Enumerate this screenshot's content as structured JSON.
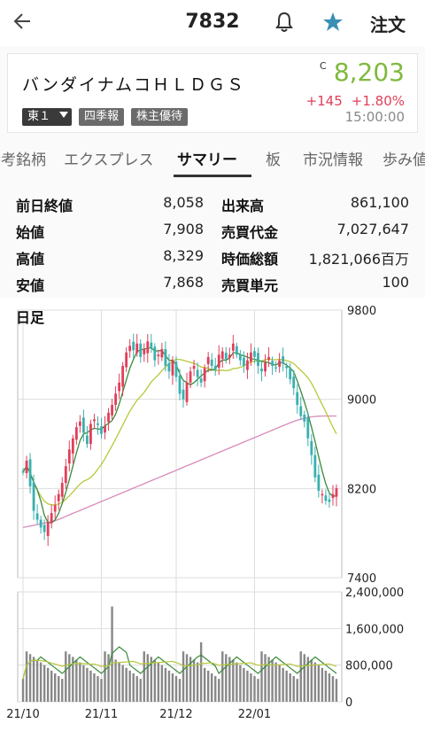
{
  "header": {
    "back_icon": "arrow-left-icon",
    "title": "7832",
    "bell_icon": "bell-icon",
    "star_icon": "star-icon",
    "order_label": "注文"
  },
  "stock": {
    "name": "バンダイナムコＨＬＤＧＳ",
    "c_mark": "C",
    "price": "8,203",
    "change": "+145",
    "change_pct": "+1.80%",
    "time": "15:00:00",
    "market_badge": "東１",
    "badge_quarterly": "四季報",
    "badge_benefit": "株主優待",
    "price_color": "#7fb93d",
    "change_color": "#e0405a"
  },
  "tabs": [
    {
      "label": "参考銘柄",
      "active": false
    },
    {
      "label": "エクスプレス",
      "active": false
    },
    {
      "label": "サマリー",
      "active": true
    },
    {
      "label": "板",
      "active": false
    },
    {
      "label": "市況情報",
      "active": false
    },
    {
      "label": "歩み値",
      "active": false
    }
  ],
  "summary": [
    {
      "label1": "前日終値",
      "value1": "8,058",
      "label2": "出来高",
      "value2": "861,100"
    },
    {
      "label1": "始値",
      "value1": "7,908",
      "label2": "売買代金",
      "value2": "7,027,647"
    },
    {
      "label1": "高値",
      "value1": "8,329",
      "label2": "時価総額",
      "value2": "1,821,066百万"
    },
    {
      "label1": "安値",
      "value1": "7,868",
      "label2": "売買単元",
      "value2": "100"
    }
  ],
  "chart_data": {
    "type": "candlestick",
    "label": "日足",
    "price_axis": {
      "ticks": [
        "9800",
        "9000",
        "8200",
        "7400"
      ],
      "range": [
        7400,
        9800
      ]
    },
    "volume_axis": {
      "ticks": [
        "2,400,000",
        "1,600,000",
        "800,000",
        "0"
      ],
      "range": [
        0,
        2400000
      ]
    },
    "x_ticks": [
      "21/10",
      "21/11",
      "21/12",
      "22/01"
    ],
    "colors": {
      "up": "#e0405a",
      "down": "#3ab0b0",
      "ma_short": "#3a8a3a",
      "ma_mid": "#b8c83a",
      "ma_long": "#d88ab8",
      "volume": "#888888"
    },
    "closes": [
      8350,
      8450,
      8220,
      8000,
      7920,
      7850,
      7810,
      7900,
      7980,
      8050,
      8150,
      8250,
      8400,
      8550,
      8650,
      8750,
      8800,
      8700,
      8600,
      8780,
      8820,
      8770,
      8690,
      8760,
      8880,
      8950,
      9050,
      9150,
      9300,
      9420,
      9480,
      9440,
      9500,
      9380,
      9450,
      9520,
      9460,
      9350,
      9400,
      9450,
      9300,
      9250,
      9350,
      9200,
      9050,
      9000,
      9150,
      9250,
      9300,
      9200,
      9150,
      9280,
      9380,
      9300,
      9260,
      9400,
      9430,
      9360,
      9400,
      9500,
      9400,
      9350,
      9300,
      9350,
      9420,
      9380,
      9300,
      9250,
      9330,
      9380,
      9300,
      9280,
      9350,
      9320,
      9280,
      9180,
      9100,
      8950,
      8850,
      8800,
      8650,
      8500,
      8300,
      8180,
      8150,
      8090,
      8080,
      8150,
      8203
    ]
  }
}
